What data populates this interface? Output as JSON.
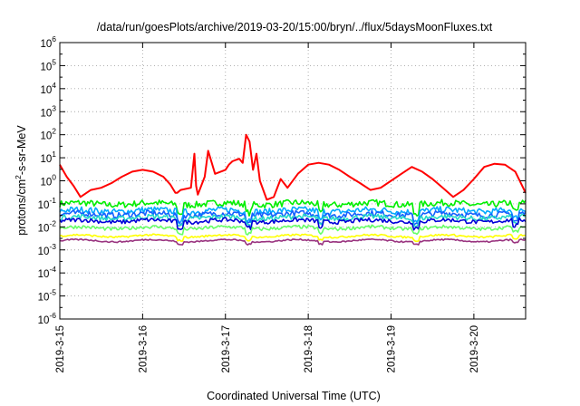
{
  "chart_data": {
    "type": "line",
    "title": "/data/run/goesPlots/archive/2019-03-20/15:00/bryn/../flux/5daysMoonFluxes.txt",
    "xlabel": "Coordinated Universal Time (UTC)",
    "ylabel": {
      "prefix": "protons/cm",
      "superscript": "2",
      "suffix": "-s-sr-MeV"
    },
    "y_scale": "log",
    "ylim": [
      1e-06,
      1000000.0
    ],
    "y_ticks": [
      {
        "base": "10",
        "exp": "-6",
        "value": 1e-06
      },
      {
        "base": "10",
        "exp": "-5",
        "value": 1e-05
      },
      {
        "base": "10",
        "exp": "-4",
        "value": 0.0001
      },
      {
        "base": "10",
        "exp": "-3",
        "value": 0.001
      },
      {
        "base": "10",
        "exp": "-2",
        "value": 0.01
      },
      {
        "base": "10",
        "exp": "-1",
        "value": 0.1
      },
      {
        "base": "10",
        "exp": "0",
        "value": 1
      },
      {
        "base": "10",
        "exp": "1",
        "value": 10
      },
      {
        "base": "10",
        "exp": "2",
        "value": 100
      },
      {
        "base": "10",
        "exp": "3",
        "value": 1000
      },
      {
        "base": "10",
        "exp": "4",
        "value": 10000
      },
      {
        "base": "10",
        "exp": "5",
        "value": 100000
      },
      {
        "base": "10",
        "exp": "6",
        "value": 1000000
      }
    ],
    "xlim": [
      "2019-03-15 00:00",
      "2019-03-20 15:00"
    ],
    "x_ticks": [
      "2019-3-15",
      "2019-3-16",
      "2019-3-17",
      "2019-3-18",
      "2019-3-19",
      "2019-3-20"
    ],
    "grid": true,
    "series": [
      {
        "color": "#ff0000",
        "x": [
          "2019-03-15 00:00",
          "2019-03-15 02:00",
          "2019-03-15 04:00",
          "2019-03-15 06:00",
          "2019-03-15 09:00",
          "2019-03-15 12:00",
          "2019-03-15 15:00",
          "2019-03-15 18:00",
          "2019-03-15 21:00",
          "2019-03-16 00:00",
          "2019-03-16 03:00",
          "2019-03-16 06:00",
          "2019-03-16 08:00",
          "2019-03-16 09:00",
          "2019-03-16 09:30",
          "2019-03-16 10:00",
          "2019-03-16 11:00",
          "2019-03-16 14:00",
          "2019-03-16 15:00",
          "2019-03-16 15:30",
          "2019-03-16 16:00",
          "2019-03-16 18:00",
          "2019-03-16 19:00",
          "2019-03-16 21:00",
          "2019-03-17 00:00",
          "2019-03-17 01:00",
          "2019-03-17 02:00",
          "2019-03-17 03:00",
          "2019-03-17 04:00",
          "2019-03-17 05:00",
          "2019-03-17 06:00",
          "2019-03-17 07:00",
          "2019-03-17 08:00",
          "2019-03-17 09:00",
          "2019-03-17 10:00",
          "2019-03-17 12:00",
          "2019-03-17 14:00",
          "2019-03-17 16:00",
          "2019-03-17 18:00",
          "2019-03-17 21:00",
          "2019-03-18 00:00",
          "2019-03-18 03:00",
          "2019-03-18 06:00",
          "2019-03-18 09:00",
          "2019-03-18 12:00",
          "2019-03-18 15:00",
          "2019-03-18 18:00",
          "2019-03-18 21:00",
          "2019-03-19 00:00",
          "2019-03-19 03:00",
          "2019-03-19 06:00",
          "2019-03-19 09:00",
          "2019-03-19 12:00",
          "2019-03-19 15:00",
          "2019-03-19 18:00",
          "2019-03-19 21:00",
          "2019-03-20 00:00",
          "2019-03-20 03:00",
          "2019-03-20 06:00",
          "2019-03-20 09:00",
          "2019-03-20 12:00",
          "2019-03-20 15:00"
        ],
        "values": [
          5,
          1.5,
          0.6,
          0.2,
          0.4,
          0.5,
          0.8,
          1.5,
          2.5,
          3,
          2.5,
          1.5,
          0.7,
          0.4,
          0.3,
          0.3,
          0.4,
          0.5,
          15,
          0.6,
          0.25,
          1.5,
          20,
          2,
          3,
          5,
          7,
          8,
          9,
          6,
          100,
          50,
          3,
          15,
          1,
          0.15,
          0.2,
          1.2,
          0.5,
          2,
          5,
          6,
          5,
          3,
          1.5,
          0.8,
          0.4,
          0.5,
          1,
          2,
          4,
          2.5,
          1.2,
          0.5,
          0.2,
          0.4,
          1.2,
          4,
          5.5,
          5,
          2.5,
          0.3
        ]
      }
    ],
    "bands": [
      {
        "color": "#00ee00",
        "level": 0.1,
        "spread": 0.28
      },
      {
        "color": "#00a8ff",
        "level": 0.05,
        "spread": 0.28
      },
      {
        "color": "#1560ff",
        "level": 0.035,
        "spread": 0.25
      },
      {
        "color": "#22d8c8",
        "level": 0.025,
        "spread": 0.22
      },
      {
        "color": "#0000d8",
        "level": 0.018,
        "spread": 0.18
      },
      {
        "color": "#66ff66",
        "level": 0.009,
        "spread": 0.15
      },
      {
        "color": "#ffff00",
        "level": 0.004,
        "spread": 0.08
      },
      {
        "color": "#99337f",
        "level": 0.0025,
        "spread": 0.06
      }
    ]
  }
}
